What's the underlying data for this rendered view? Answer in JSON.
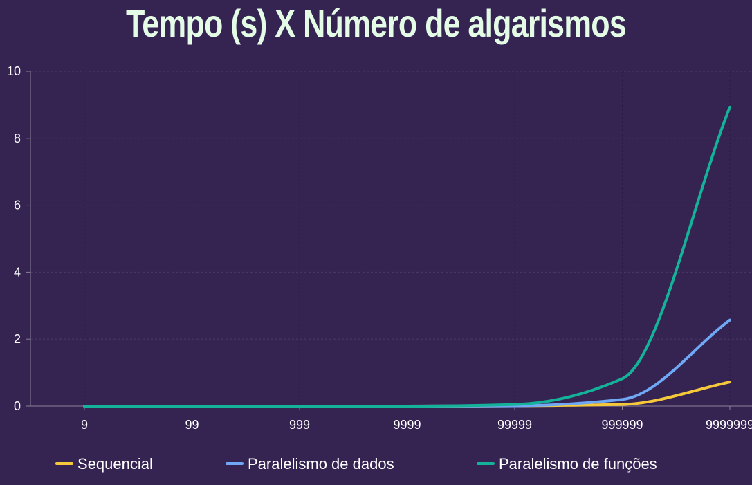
{
  "chart_data": {
    "type": "line",
    "title": "Tempo (s) X Número de algarismos",
    "xlabel": "",
    "ylabel": "",
    "categories": [
      "9",
      "99",
      "999",
      "9999",
      "99999",
      "999999",
      "9999999"
    ],
    "ylim": [
      0,
      10
    ],
    "yticks": [
      "0",
      "2",
      "4",
      "6",
      "8",
      "10"
    ],
    "grid": true,
    "legend_position": "bottom",
    "series": [
      {
        "name": "Sequencial",
        "color": "#f6c93b",
        "values": [
          0,
          0,
          0,
          0,
          0.01,
          0.05,
          0.72
        ]
      },
      {
        "name": "Paralelismo de dados",
        "color": "#6fa8f5",
        "values": [
          0,
          0,
          0,
          0,
          0.01,
          0.2,
          2.57
        ]
      },
      {
        "name": "Paralelismo de funções",
        "color": "#15b29a",
        "values": [
          0,
          0,
          0,
          0,
          0.05,
          0.82,
          8.93
        ]
      }
    ]
  }
}
